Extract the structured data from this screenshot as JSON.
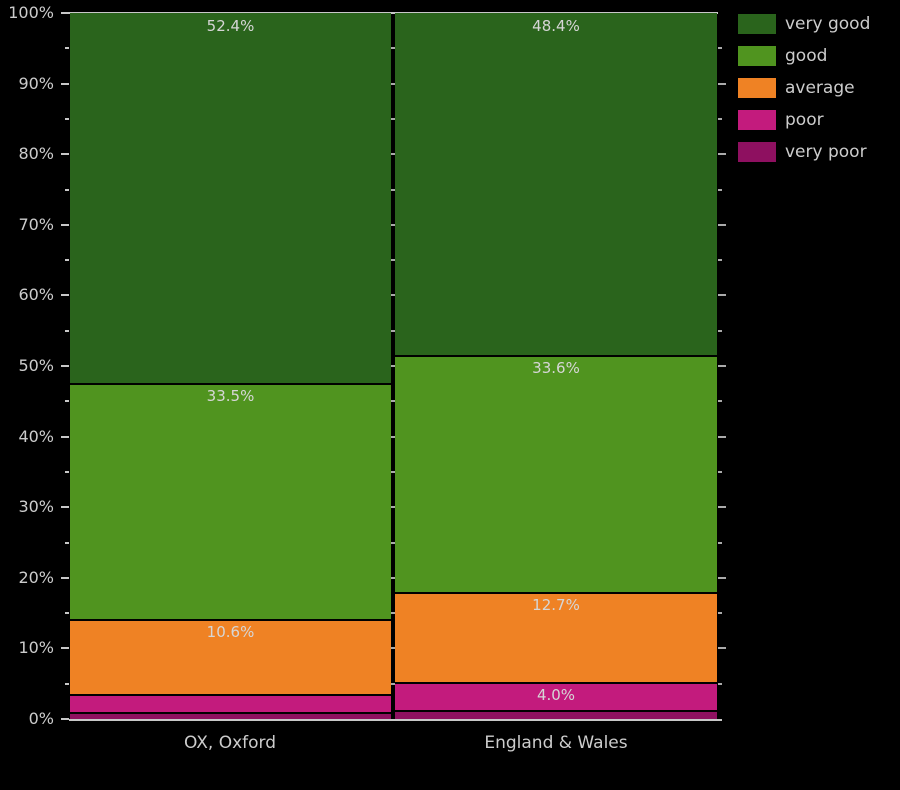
{
  "chart_data": {
    "type": "bar",
    "subtype": "100-percent-stacked-column",
    "title": "",
    "xlabel": "",
    "ylabel": "",
    "ylim": [
      0,
      100
    ],
    "grid": false,
    "categories": [
      "OX, Oxford",
      "England & Wales"
    ],
    "series": [
      {
        "name": "very good",
        "color": "#2a641c",
        "values": [
          52.4,
          48.4
        ],
        "data_labels": [
          "52.4%",
          "48.4%"
        ]
      },
      {
        "name": "good",
        "color": "#50941f",
        "values": [
          33.5,
          33.6
        ],
        "data_labels": [
          "33.5%",
          "33.6%"
        ]
      },
      {
        "name": "average",
        "color": "#ef8224",
        "values": [
          10.6,
          12.7
        ],
        "data_labels": [
          "10.6%",
          "12.7%"
        ]
      },
      {
        "name": "poor",
        "color": "#c31b7d",
        "values": [
          2.5,
          4.0
        ],
        "data_labels": [
          "",
          "4.0%"
        ]
      },
      {
        "name": "very poor",
        "color": "#8e1060",
        "values": [
          1.0,
          1.3
        ],
        "data_labels": [
          "",
          ""
        ]
      }
    ],
    "stack_order_top_to_bottom": [
      "very good",
      "good",
      "average",
      "poor",
      "very poor"
    ],
    "y_ticks": [
      "0%",
      "10%",
      "20%",
      "30%",
      "40%",
      "50%",
      "60%",
      "70%",
      "80%",
      "90%",
      "100%"
    ],
    "y_major_tick_step": 10,
    "y_minor_tick_step": 5,
    "legend": {
      "position": "top-right-outside",
      "entries": [
        {
          "label": "very good",
          "color": "#2a641c"
        },
        {
          "label": "good",
          "color": "#50941f"
        },
        {
          "label": "average",
          "color": "#ef8224"
        },
        {
          "label": "poor",
          "color": "#c31b7d"
        },
        {
          "label": "very poor",
          "color": "#8e1060"
        }
      ]
    }
  },
  "colors": {
    "background": "#000000",
    "axis_text": "#cccccc",
    "bar_label_text": "#d6d6d6",
    "axis_line": "#c8c8c8"
  }
}
